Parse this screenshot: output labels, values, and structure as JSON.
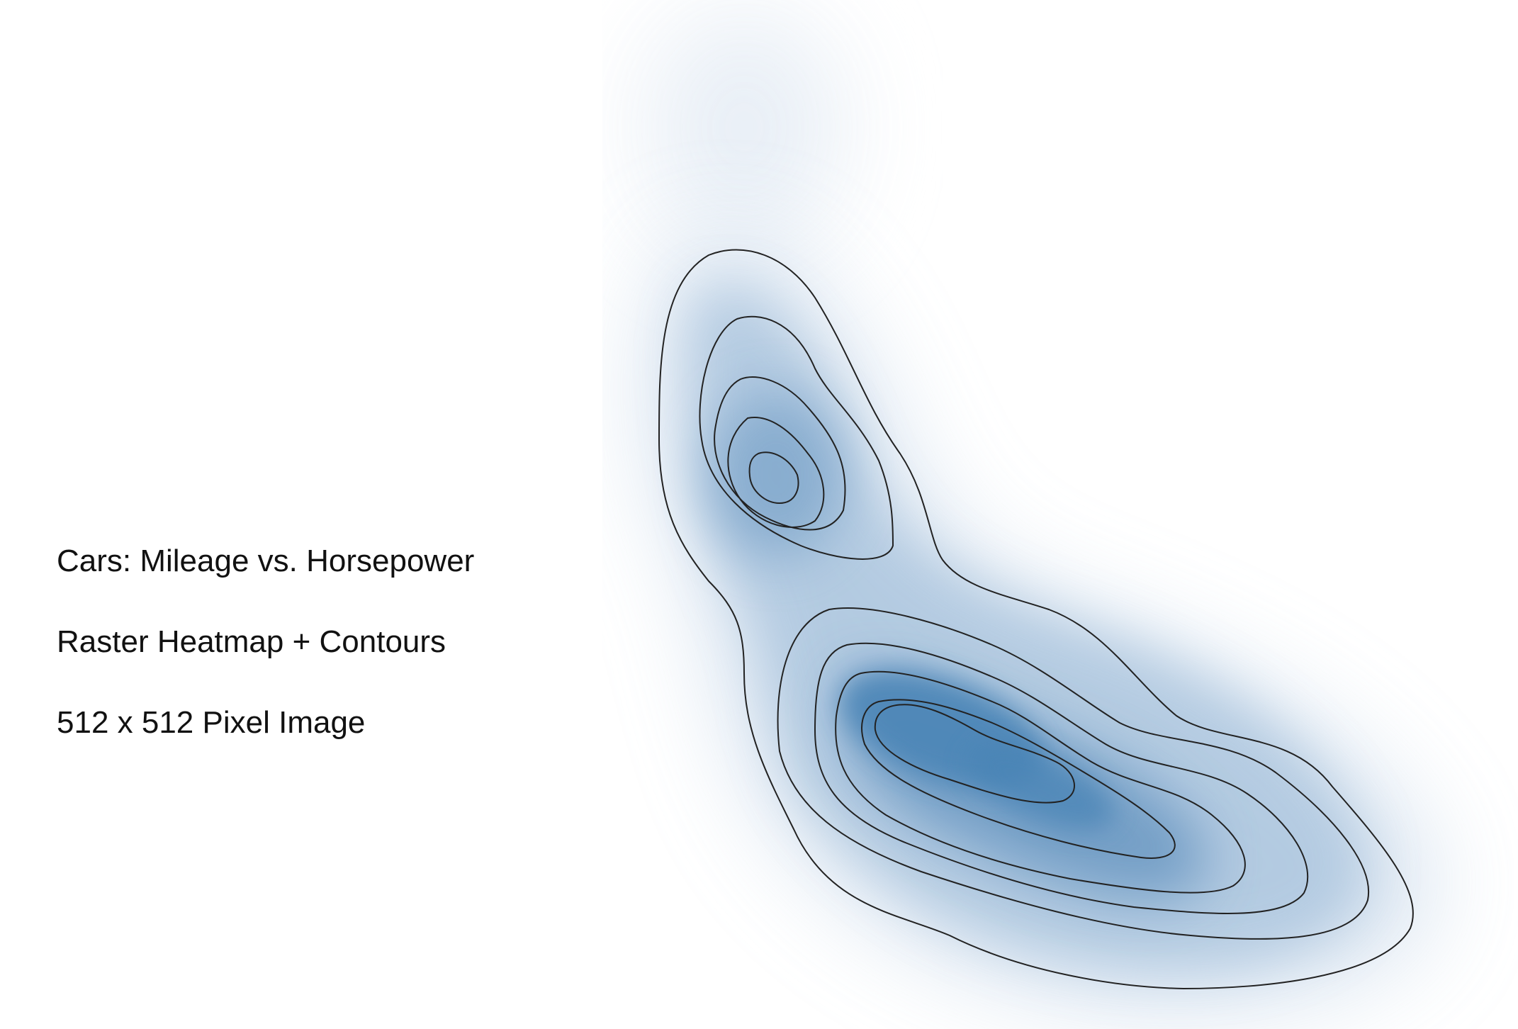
{
  "text": {
    "line1": "Cars: Mileage vs. Horsepower",
    "line2": "Raster Heatmap + Contours",
    "line3": "512 x 512 Pixel Image"
  },
  "colors": {
    "background": "#ffffff",
    "heat_low": "#ffffff",
    "heat_high": "#4a84b6",
    "contour": "#222222"
  },
  "chart_data": {
    "type": "heatmap",
    "title": "Cars: Mileage vs. Horsepower",
    "subtitle": "Raster Heatmap + Contours",
    "description_text": "512 x 512 Pixel Image",
    "xlabel": "",
    "ylabel": "",
    "axes_visible": false,
    "grid": false,
    "legend": "none",
    "colormap": "white-to-blue",
    "contour_levels": 9,
    "peaks": [
      {
        "name": "upper-left cluster",
        "relative_density": 0.55
      },
      {
        "name": "main cluster",
        "relative_density": 1.0
      }
    ]
  }
}
